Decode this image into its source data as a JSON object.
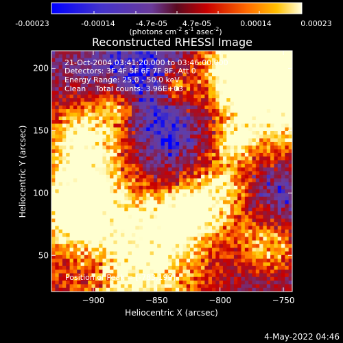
{
  "colorbar": {
    "ticks": [
      "-0.00023",
      "-0.00014",
      "-4.7e-05",
      "4.7e-05",
      "0.00014",
      "0.00023"
    ],
    "unit_prefix": "(photons cm",
    "unit_exp1": "-2",
    "unit_mid": " s",
    "unit_exp2": "-1",
    "unit_mid2": " asec",
    "unit_exp3": "-2",
    "unit_suffix": ")"
  },
  "chart_data": {
    "type": "heatmap",
    "title": "Reconstructed RHESSI Image",
    "xlabel": "Heliocentric X (arcsec)",
    "ylabel": "Heliocentric Y (arcsec)",
    "xlim": [
      -933,
      -743
    ],
    "ylim": [
      21,
      214
    ],
    "x_ticks": [
      -900,
      -850,
      -800,
      -750
    ],
    "y_ticks": [
      50,
      100,
      150,
      200
    ],
    "value_range": [
      -0.00023,
      0.00023
    ],
    "colormap": [
      "#0000ff",
      "#5a3fb0",
      "#6a3a9a",
      "#8a1a40",
      "#c80000",
      "#ff6a00",
      "#ffc000",
      "#ffffd0"
    ],
    "annotations": [
      "21-Oct-2004 03:41:20.000 to 03:46:00.000",
      "Detectors: 3F 4F 5F 6F 7F 8F, Att 0",
      "Energy Range: 25.0 - 50.0 keV",
      "Clean    Total counts: 3.96E+03"
    ],
    "peak_label": "Position of Peak = [-783,199]",
    "peak": [
      -783,
      199
    ]
  },
  "footer": {
    "date": "4-May-2022 04:46"
  }
}
